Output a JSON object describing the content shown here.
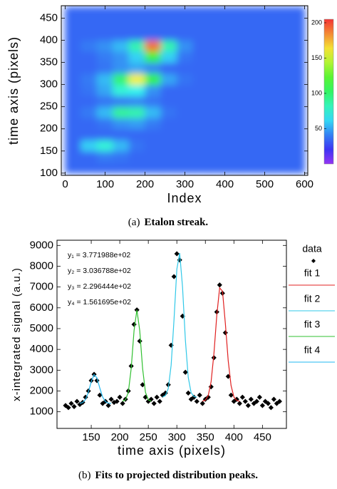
{
  "chart_data": [
    {
      "type": "heatmap",
      "caption_label": "(a)",
      "caption": "Etalon streak.",
      "xlabel": "Index",
      "ylabel": "time axis (pixels)",
      "xlim": [
        -10,
        608
      ],
      "ylim": [
        95,
        478
      ],
      "xticks": [
        0,
        100,
        200,
        300,
        400,
        500,
        600
      ],
      "yticks": [
        100,
        150,
        200,
        250,
        300,
        350,
        400,
        450
      ],
      "xbins": [
        0,
        40,
        80,
        120,
        160,
        200,
        240,
        280,
        320,
        360,
        400,
        440,
        480,
        520,
        560,
        600
      ],
      "ybins": [
        100,
        125,
        150,
        175,
        200,
        225,
        250,
        275,
        300,
        325,
        350,
        375,
        400,
        425,
        450,
        475
      ],
      "values": [
        [
          35,
          35,
          35,
          35,
          35,
          35,
          35,
          35,
          35,
          35,
          35,
          35,
          35,
          35,
          35
        ],
        [
          35,
          35,
          40,
          38,
          35,
          35,
          35,
          35,
          35,
          35,
          35,
          35,
          35,
          35,
          35
        ],
        [
          35,
          60,
          75,
          55,
          38,
          35,
          35,
          35,
          35,
          35,
          35,
          35,
          35,
          35,
          35
        ],
        [
          35,
          35,
          35,
          35,
          35,
          35,
          35,
          35,
          35,
          35,
          35,
          35,
          35,
          35,
          35
        ],
        [
          35,
          35,
          38,
          45,
          48,
          40,
          35,
          35,
          35,
          35,
          35,
          35,
          35,
          35,
          35
        ],
        [
          35,
          40,
          55,
          90,
          85,
          55,
          38,
          35,
          35,
          35,
          35,
          35,
          35,
          35,
          35
        ],
        [
          35,
          35,
          38,
          40,
          42,
          38,
          35,
          35,
          35,
          35,
          35,
          35,
          35,
          35,
          35
        ],
        [
          35,
          38,
          50,
          75,
          70,
          45,
          35,
          35,
          35,
          35,
          35,
          35,
          35,
          35,
          35
        ],
        [
          35,
          40,
          55,
          100,
          160,
          110,
          50,
          38,
          35,
          35,
          35,
          35,
          35,
          35,
          35
        ],
        [
          35,
          35,
          38,
          45,
          50,
          42,
          35,
          35,
          35,
          35,
          35,
          35,
          35,
          35,
          35
        ],
        [
          35,
          35,
          40,
          45,
          60,
          110,
          60,
          38,
          35,
          35,
          35,
          35,
          35,
          35,
          35
        ],
        [
          35,
          40,
          45,
          55,
          85,
          190,
          85,
          45,
          35,
          35,
          35,
          35,
          35,
          35,
          35
        ],
        [
          35,
          35,
          35,
          35,
          35,
          35,
          35,
          35,
          35,
          35,
          35,
          35,
          35,
          35,
          35
        ],
        [
          35,
          35,
          35,
          35,
          35,
          35,
          35,
          35,
          35,
          35,
          35,
          35,
          35,
          35,
          35
        ],
        [
          35,
          35,
          35,
          35,
          35,
          35,
          35,
          35,
          35,
          35,
          35,
          35,
          35,
          35,
          35
        ]
      ],
      "clim": [
        0,
        205
      ],
      "cticks": [
        50,
        100,
        150,
        200
      ]
    },
    {
      "type": "scatter",
      "caption_label": "(b)",
      "caption": "Fits to projected distribution peaks.",
      "xlabel": "time axis (pixels)",
      "ylabel": "x-integrated signal (a.u.)",
      "xlim": [
        90,
        492
      ],
      "ylim": [
        200,
        9250
      ],
      "xticks": [
        150,
        200,
        250,
        300,
        350,
        400,
        450
      ],
      "yticks": [
        1000,
        2000,
        3000,
        4000,
        5000,
        6000,
        7000,
        8000,
        9000
      ],
      "annotations": [
        "y₁ = 3.771988e+02",
        "y₂ = 3.036788e+02",
        "y₃ = 2.296444e+02",
        "y₄ = 1.561695e+02"
      ],
      "series": [
        {
          "name": "data",
          "style": "markers",
          "color": "#000000",
          "x": [
            105,
            110,
            115,
            120,
            125,
            130,
            135,
            140,
            145,
            150,
            155,
            160,
            165,
            170,
            175,
            180,
            185,
            190,
            195,
            200,
            205,
            210,
            215,
            220,
            225,
            230,
            235,
            240,
            245,
            250,
            255,
            260,
            265,
            270,
            275,
            280,
            285,
            290,
            295,
            300,
            305,
            310,
            315,
            320,
            325,
            330,
            335,
            340,
            345,
            350,
            355,
            360,
            365,
            370,
            375,
            380,
            385,
            390,
            395,
            400,
            405,
            410,
            415,
            420,
            425,
            430,
            435,
            440,
            445,
            450,
            455,
            460,
            465,
            470,
            475,
            480
          ],
          "values": [
            1300,
            1200,
            1400,
            1250,
            1500,
            1350,
            1450,
            1700,
            2000,
            2500,
            2800,
            2500,
            1800,
            1400,
            1500,
            1300,
            1600,
            1450,
            1500,
            1700,
            1400,
            1600,
            2000,
            3200,
            5200,
            5900,
            4400,
            2300,
            1700,
            1500,
            1600,
            1400,
            1700,
            1500,
            1800,
            1900,
            2300,
            4200,
            7500,
            8600,
            8300,
            5600,
            2900,
            1900,
            1600,
            1700,
            1500,
            1800,
            1400,
            1600,
            1700,
            2200,
            3600,
            5800,
            7100,
            6700,
            4800,
            2700,
            1800,
            1500,
            1600,
            1400,
            1700,
            1500,
            1300,
            1600,
            1400,
            1500,
            1700,
            1300,
            1500,
            1400,
            1200,
            1600,
            1400,
            1500
          ]
        },
        {
          "name": "fit 1",
          "style": "line",
          "color": "#e02020",
          "x": [
            345,
            350,
            355,
            360,
            365,
            370,
            375,
            380,
            385,
            390,
            395,
            400,
            405,
            410
          ],
          "values": [
            1510,
            1560,
            1780,
            2440,
            3800,
            5640,
            6960,
            6800,
            5250,
            3460,
            2260,
            1710,
            1545,
            1505
          ]
        },
        {
          "name": "fit 2",
          "style": "line",
          "color": "#30c8e8",
          "x": [
            275,
            280,
            285,
            290,
            295,
            300,
            305,
            310,
            315,
            320,
            325,
            330,
            335
          ],
          "values": [
            1710,
            1780,
            2120,
            3240,
            5410,
            7860,
            8630,
            6990,
            4430,
            2650,
            1920,
            1735,
            1700
          ]
        },
        {
          "name": "fit 3",
          "style": "line",
          "color": "#30c030",
          "x": [
            205,
            210,
            215,
            220,
            225,
            230,
            235,
            240,
            245,
            250,
            255
          ],
          "values": [
            1510,
            1575,
            1940,
            3080,
            4900,
            5900,
            4900,
            3080,
            1940,
            1575,
            1510
          ]
        },
        {
          "name": "fit 4",
          "style": "line",
          "color": "#20b8f0",
          "x": [
            130,
            135,
            140,
            145,
            150,
            155,
            160,
            165,
            170,
            175,
            180,
            185
          ],
          "values": [
            1407,
            1446,
            1590,
            1945,
            2450,
            2786,
            2632,
            2142,
            1708,
            1484,
            1415,
            1402
          ]
        }
      ]
    }
  ]
}
